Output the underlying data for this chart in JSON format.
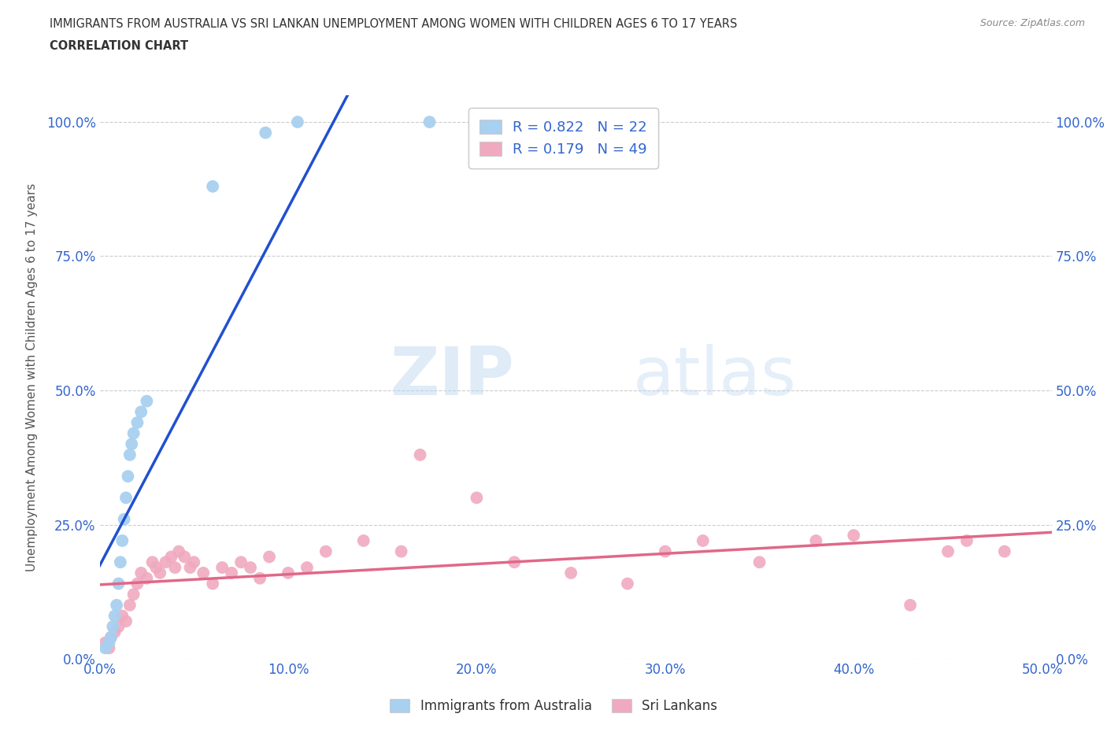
{
  "title_line1": "IMMIGRANTS FROM AUSTRALIA VS SRI LANKAN UNEMPLOYMENT AMONG WOMEN WITH CHILDREN AGES 6 TO 17 YEARS",
  "title_line2": "CORRELATION CHART",
  "source_text": "Source: ZipAtlas.com",
  "ylabel": "Unemployment Among Women with Children Ages 6 to 17 years",
  "xlim": [
    0.0,
    0.505
  ],
  "ylim": [
    0.0,
    1.05
  ],
  "xtick_labels": [
    "0.0%",
    "10.0%",
    "20.0%",
    "30.0%",
    "40.0%",
    "50.0%"
  ],
  "xtick_vals": [
    0.0,
    0.1,
    0.2,
    0.3,
    0.4,
    0.5
  ],
  "ytick_labels": [
    "0.0%",
    "25.0%",
    "50.0%",
    "75.0%",
    "100.0%"
  ],
  "ytick_vals": [
    0.0,
    0.25,
    0.5,
    0.75,
    1.0
  ],
  "legend_labels": [
    "Immigrants from Australia",
    "Sri Lankans"
  ],
  "legend_r_blue": "R = 0.822   N = 22",
  "legend_r_pink": "R = 0.179   N = 49",
  "blue_color": "#a8d0f0",
  "pink_color": "#f0aac0",
  "trend_blue": "#2050d0",
  "trend_pink": "#e06888",
  "watermark_zip": "ZIP",
  "watermark_atlas": "atlas",
  "blue_scatter_x": [
    0.003,
    0.005,
    0.006,
    0.007,
    0.008,
    0.009,
    0.01,
    0.011,
    0.012,
    0.013,
    0.014,
    0.015,
    0.016,
    0.017,
    0.018,
    0.02,
    0.022,
    0.025,
    0.06,
    0.088,
    0.105,
    0.175
  ],
  "blue_scatter_y": [
    0.02,
    0.03,
    0.04,
    0.06,
    0.08,
    0.1,
    0.14,
    0.18,
    0.22,
    0.26,
    0.3,
    0.34,
    0.38,
    0.4,
    0.42,
    0.44,
    0.46,
    0.48,
    0.88,
    0.98,
    1.0,
    1.0
  ],
  "pink_scatter_x": [
    0.003,
    0.005,
    0.006,
    0.008,
    0.01,
    0.012,
    0.014,
    0.016,
    0.018,
    0.02,
    0.022,
    0.025,
    0.028,
    0.03,
    0.032,
    0.035,
    0.038,
    0.04,
    0.042,
    0.045,
    0.048,
    0.05,
    0.055,
    0.06,
    0.065,
    0.07,
    0.075,
    0.08,
    0.085,
    0.09,
    0.1,
    0.11,
    0.12,
    0.14,
    0.16,
    0.17,
    0.2,
    0.22,
    0.25,
    0.28,
    0.3,
    0.32,
    0.35,
    0.38,
    0.4,
    0.43,
    0.45,
    0.46,
    0.48
  ],
  "pink_scatter_y": [
    0.03,
    0.02,
    0.04,
    0.05,
    0.06,
    0.08,
    0.07,
    0.1,
    0.12,
    0.14,
    0.16,
    0.15,
    0.18,
    0.17,
    0.16,
    0.18,
    0.19,
    0.17,
    0.2,
    0.19,
    0.17,
    0.18,
    0.16,
    0.14,
    0.17,
    0.16,
    0.18,
    0.17,
    0.15,
    0.19,
    0.16,
    0.17,
    0.2,
    0.22,
    0.2,
    0.38,
    0.3,
    0.18,
    0.16,
    0.14,
    0.2,
    0.22,
    0.18,
    0.22,
    0.23,
    0.1,
    0.2,
    0.22,
    0.2
  ]
}
